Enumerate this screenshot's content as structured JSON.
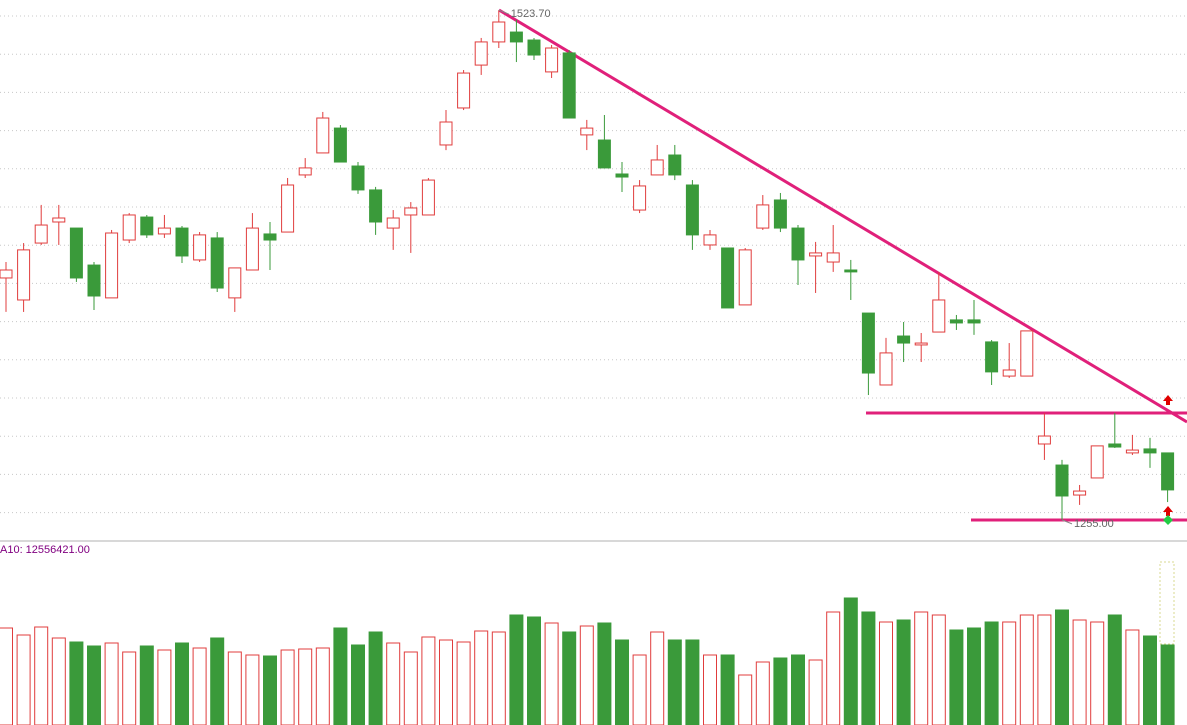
{
  "chart_data": [
    {
      "type": "candlestick",
      "up_color": "#e03c3c",
      "down_color": "#3a9a3a",
      "ylim": [
        1244.4,
        1529.0
      ],
      "series": {
        "open": [
          1382.5,
          1370.9,
          1400.9,
          1412.0,
          1408.8,
          1389.3,
          1372.0,
          1402.5,
          1414.6,
          1405.7,
          1408.8,
          1392.0,
          1403.6,
          1372.0,
          1386.7,
          1405.7,
          1406.7,
          1436.8,
          1448.4,
          1461.5,
          1441.5,
          1428.9,
          1408.8,
          1415.7,
          1415.7,
          1452.6,
          1472.1,
          1494.7,
          1506.9,
          1512.1,
          1507.9,
          1491.1,
          1501.1,
          1457.9,
          1455.2,
          1437.3,
          1418.3,
          1436.8,
          1447.3,
          1431.5,
          1399.9,
          1398.3,
          1368.3,
          1408.8,
          1423.6,
          1408.8,
          1394.1,
          1390.9,
          1386.7,
          1364.0,
          1326.1,
          1351.9,
          1347.2,
          1354.0,
          1360.4,
          1360.4,
          1348.8,
          1330.8,
          1330.8,
          1295.0,
          1283.9,
          1268.1,
          1277.1,
          1295.0,
          1290.3,
          1292.4,
          1290.3
        ],
        "high": [
          1390.9,
          1400.9,
          1421.0,
          1421.0,
          1408.8,
          1390.9,
          1407.8,
          1416.7,
          1415.7,
          1415.7,
          1409.9,
          1406.7,
          1406.7,
          1387.8,
          1416.7,
          1412.0,
          1435.2,
          1445.7,
          1470.0,
          1463.1,
          1443.6,
          1430.5,
          1418.3,
          1422.5,
          1435.2,
          1471.0,
          1492.1,
          1509.0,
          1523.7,
          1518.5,
          1509.0,
          1505.3,
          1502.6,
          1465.8,
          1468.4,
          1443.6,
          1434.1,
          1452.6,
          1452.6,
          1434.1,
          1407.8,
          1398.3,
          1398.3,
          1426.2,
          1427.3,
          1410.4,
          1401.5,
          1410.4,
          1392.0,
          1364.0,
          1350.9,
          1359.3,
          1353.5,
          1385.7,
          1363.0,
          1370.9,
          1349.8,
          1348.2,
          1354.6,
          1311.3,
          1286.6,
          1273.4,
          1294.0,
          1311.3,
          1299.8,
          1298.2,
          1290.3
        ],
        "low": [
          1364.6,
          1364.6,
          1399.9,
          1399.9,
          1380.4,
          1365.6,
          1372.0,
          1400.9,
          1403.6,
          1403.6,
          1390.4,
          1390.9,
          1375.1,
          1364.6,
          1386.7,
          1386.7,
          1406.7,
          1435.2,
          1448.4,
          1443.6,
          1426.8,
          1405.2,
          1397.3,
          1395.7,
          1415.7,
          1449.9,
          1471.0,
          1489.5,
          1503.7,
          1496.3,
          1497.4,
          1487.9,
          1466.8,
          1449.9,
          1440.5,
          1427.8,
          1416.7,
          1436.8,
          1434.1,
          1397.3,
          1397.3,
          1366.7,
          1368.3,
          1407.8,
          1406.7,
          1378.8,
          1374.6,
          1385.7,
          1370.9,
          1320.8,
          1326.1,
          1338.2,
          1338.2,
          1354.0,
          1355.1,
          1352.5,
          1326.1,
          1329.8,
          1330.8,
          1286.6,
          1255.0,
          1262.9,
          1277.1,
          1292.9,
          1289.2,
          1282.4,
          1264.4
        ],
        "close": [
          1386.7,
          1397.3,
          1410.4,
          1414.1,
          1382.5,
          1373.0,
          1406.2,
          1415.7,
          1405.2,
          1408.8,
          1394.1,
          1405.2,
          1377.2,
          1387.8,
          1408.8,
          1402.5,
          1431.5,
          1440.5,
          1466.8,
          1443.6,
          1428.9,
          1412.0,
          1414.1,
          1419.4,
          1434.1,
          1464.7,
          1490.5,
          1506.9,
          1517.4,
          1506.9,
          1500.0,
          1503.7,
          1466.8,
          1461.5,
          1440.5,
          1435.7,
          1431.0,
          1444.7,
          1436.8,
          1405.2,
          1405.2,
          1366.7,
          1397.3,
          1421.0,
          1408.8,
          1392.0,
          1395.7,
          1395.7,
          1385.7,
          1332.4,
          1343.0,
          1348.2,
          1348.2,
          1370.9,
          1358.8,
          1358.8,
          1333.0,
          1334.0,
          1354.6,
          1299.2,
          1267.6,
          1270.2,
          1294.0,
          1293.4,
          1291.8,
          1290.3,
          1270.8
        ]
      },
      "annotations": [
        {
          "value": 1523.7,
          "label": "1523.70"
        },
        {
          "value": 1255.0,
          "label": "1255.00"
        }
      ]
    },
    {
      "type": "bar",
      "title": "A10: 12556421.00",
      "ylim": [
        0,
        23660000
      ],
      "values": [
        12610000,
        11700000,
        12740000,
        11310000,
        10790000,
        10270000,
        10660000,
        9490000,
        10270000,
        9750000,
        10660000,
        10010000,
        11310000,
        9490000,
        9100000,
        8970000,
        9750000,
        9880000,
        10010000,
        12610000,
        10400000,
        12090000,
        10660000,
        9490000,
        11440000,
        11050000,
        10790000,
        12220000,
        12090000,
        14300000,
        14040000,
        13260000,
        12090000,
        12870000,
        13260000,
        11050000,
        9100000,
        12090000,
        11050000,
        11050000,
        9100000,
        9100000,
        6500000,
        8190000,
        8710000,
        9100000,
        8450000,
        14690000,
        16510000,
        14690000,
        13390000,
        13650000,
        14690000,
        14300000,
        12350000,
        12610000,
        13390000,
        13390000,
        14300000,
        14300000,
        14950000,
        13650000,
        13390000,
        14300000,
        12350000,
        11570000,
        10400000
      ]
    }
  ]
}
